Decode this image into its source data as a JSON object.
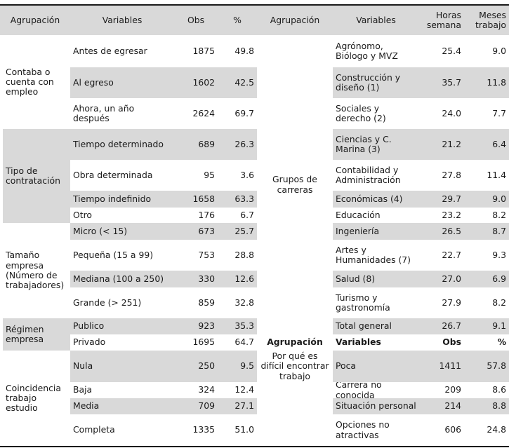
{
  "left": {
    "headers": [
      "Agrupación",
      "Variables",
      "Obs",
      "%"
    ],
    "groups": [
      {
        "label": "Contaba o cuenta con empleo",
        "rows": [
          {
            "variable": "Antes de egresar",
            "obs": "1875",
            "pct": "49.8"
          },
          {
            "variable": "Al egreso",
            "obs": "1602",
            "pct": "42.5"
          },
          {
            "variable": "Ahora, un año después",
            "obs": "2624",
            "pct": "69.7"
          }
        ]
      },
      {
        "label": "Tipo de contratación",
        "rows": [
          {
            "variable": "Tiempo determinado",
            "obs": "689",
            "pct": "26.3"
          },
          {
            "variable": "Obra determinada",
            "obs": "95",
            "pct": "3.6"
          },
          {
            "variable": "Tiempo indefinido",
            "obs": "1658",
            "pct": "63.3"
          },
          {
            "variable": "Otro",
            "obs": "176",
            "pct": "6.7"
          }
        ]
      },
      {
        "label": "Tamaño empresa (Número de trabajadores)",
        "rows": [
          {
            "variable": "Micro (< 15)",
            "obs": "673",
            "pct": "25.7"
          },
          {
            "variable": "Pequeña (15 a 99)",
            "obs": "753",
            "pct": "28.8"
          },
          {
            "variable": "Mediana (100 a 250)",
            "obs": "330",
            "pct": "12.6"
          },
          {
            "variable": "Grande (> 251)",
            "obs": "859",
            "pct": "32.8"
          }
        ]
      },
      {
        "label": "Régimen empresa",
        "rows": [
          {
            "variable": "Publico",
            "obs": "923",
            "pct": "35.3"
          },
          {
            "variable": "Privado",
            "obs": "1695",
            "pct": "64.7"
          }
        ]
      },
      {
        "label": "Coincidencia trabajo estudio",
        "rows": [
          {
            "variable": "Nula",
            "obs": "250",
            "pct": "9.5"
          },
          {
            "variable": "Baja",
            "obs": "324",
            "pct": "12.4"
          },
          {
            "variable": "Media",
            "obs": "709",
            "pct": "27.1"
          },
          {
            "variable": "Completa",
            "obs": "1335",
            "pct": "51.0"
          }
        ]
      }
    ]
  },
  "right": {
    "headers": [
      "Agrupación",
      "Variables",
      "Horas semana",
      "Meses trabajo"
    ],
    "group_label": "Grupos de carreras",
    "rows": [
      {
        "variable": "Agrónomo, Biólogo y MVZ",
        "horas": "25.4",
        "meses": "9.0"
      },
      {
        "variable": "Construcción y diseño (1)",
        "horas": "35.7",
        "meses": "11.8"
      },
      {
        "variable": "Sociales y derecho (2)",
        "horas": "24.0",
        "meses": "7.7"
      },
      {
        "variable": "Ciencias y C. Marina (3)",
        "horas": "21.2",
        "meses": "6.4"
      },
      {
        "variable": "Contabilidad y Administración",
        "horas": "27.8",
        "meses": "11.4"
      },
      {
        "variable": "Económicas (4)",
        "horas": "29.7",
        "meses": "9.0"
      },
      {
        "variable": "Educación",
        "horas": "23.2",
        "meses": "8.2"
      },
      {
        "variable": "Ingeniería",
        "horas": "26.5",
        "meses": "8.7"
      },
      {
        "variable": "Artes y Humanidades (7)",
        "horas": "22.7",
        "meses": "9.3"
      },
      {
        "variable": "Salud (8)",
        "horas": "27.0",
        "meses": "6.9"
      },
      {
        "variable": "Turismo y gastronomía",
        "horas": "27.9",
        "meses": "8.2"
      },
      {
        "variable": "Total general",
        "horas": "26.7",
        "meses": "9.1"
      }
    ],
    "sub_headers": [
      "Agrupación",
      "Variables",
      "Obs",
      "%"
    ],
    "sub_group_label": "Por qué es difícil encontrar trabajo",
    "sub_rows": [
      {
        "variable": "Poca",
        "obs": "1411",
        "pct": "57.8"
      },
      {
        "variable": "Carrera no conocida",
        "obs": "209",
        "pct": "8.6"
      },
      {
        "variable": "Situación personal",
        "obs": "214",
        "pct": "8.8"
      },
      {
        "variable": "Opciones no atractivas",
        "obs": "606",
        "pct": "24.8"
      }
    ]
  }
}
